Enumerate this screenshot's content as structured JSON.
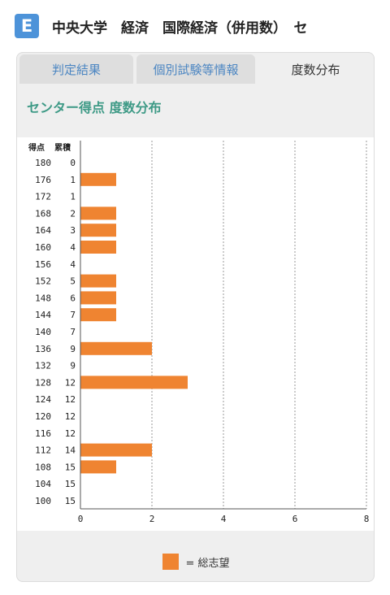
{
  "header": {
    "badge": "E",
    "title": "中央大学　経済　国際経済（併用数）　セ"
  },
  "tabs": [
    {
      "label": "判定結果",
      "active": false
    },
    {
      "label": "個別試験等情報",
      "active": false
    },
    {
      "label": "度数分布",
      "active": true
    }
  ],
  "section_title": "センター得点 度数分布",
  "legend": {
    "label": "= 総志望"
  },
  "colors": {
    "bar": "#ef8431",
    "accent": "#3e9a86",
    "badge": "#4d93d9",
    "tab_text": "#4c86c2"
  },
  "chart_data": {
    "type": "bar",
    "orientation": "horizontal",
    "column_headers": [
      "得点",
      "累積"
    ],
    "categories": [
      "180",
      "176",
      "172",
      "168",
      "164",
      "160",
      "156",
      "152",
      "148",
      "144",
      "140",
      "136",
      "132",
      "128",
      "124",
      "120",
      "116",
      "112",
      "108",
      "104",
      "100"
    ],
    "cumulative": [
      "0",
      "1",
      "1",
      "2",
      "3",
      "4",
      "4",
      "5",
      "6",
      "7",
      "7",
      "9",
      "9",
      "12",
      "12",
      "12",
      "12",
      "14",
      "15",
      "15",
      "15"
    ],
    "series": [
      {
        "name": "総志望",
        "values": [
          0,
          1,
          0,
          1,
          1,
          1,
          0,
          1,
          1,
          1,
          0,
          2,
          0,
          3,
          0,
          0,
          0,
          2,
          1,
          0,
          0
        ]
      }
    ],
    "xlim": [
      0,
      8
    ],
    "xticks": [
      "0",
      "2",
      "4",
      "6",
      "8"
    ],
    "grid": "vertical-dashed",
    "legend_position": "bottom"
  }
}
